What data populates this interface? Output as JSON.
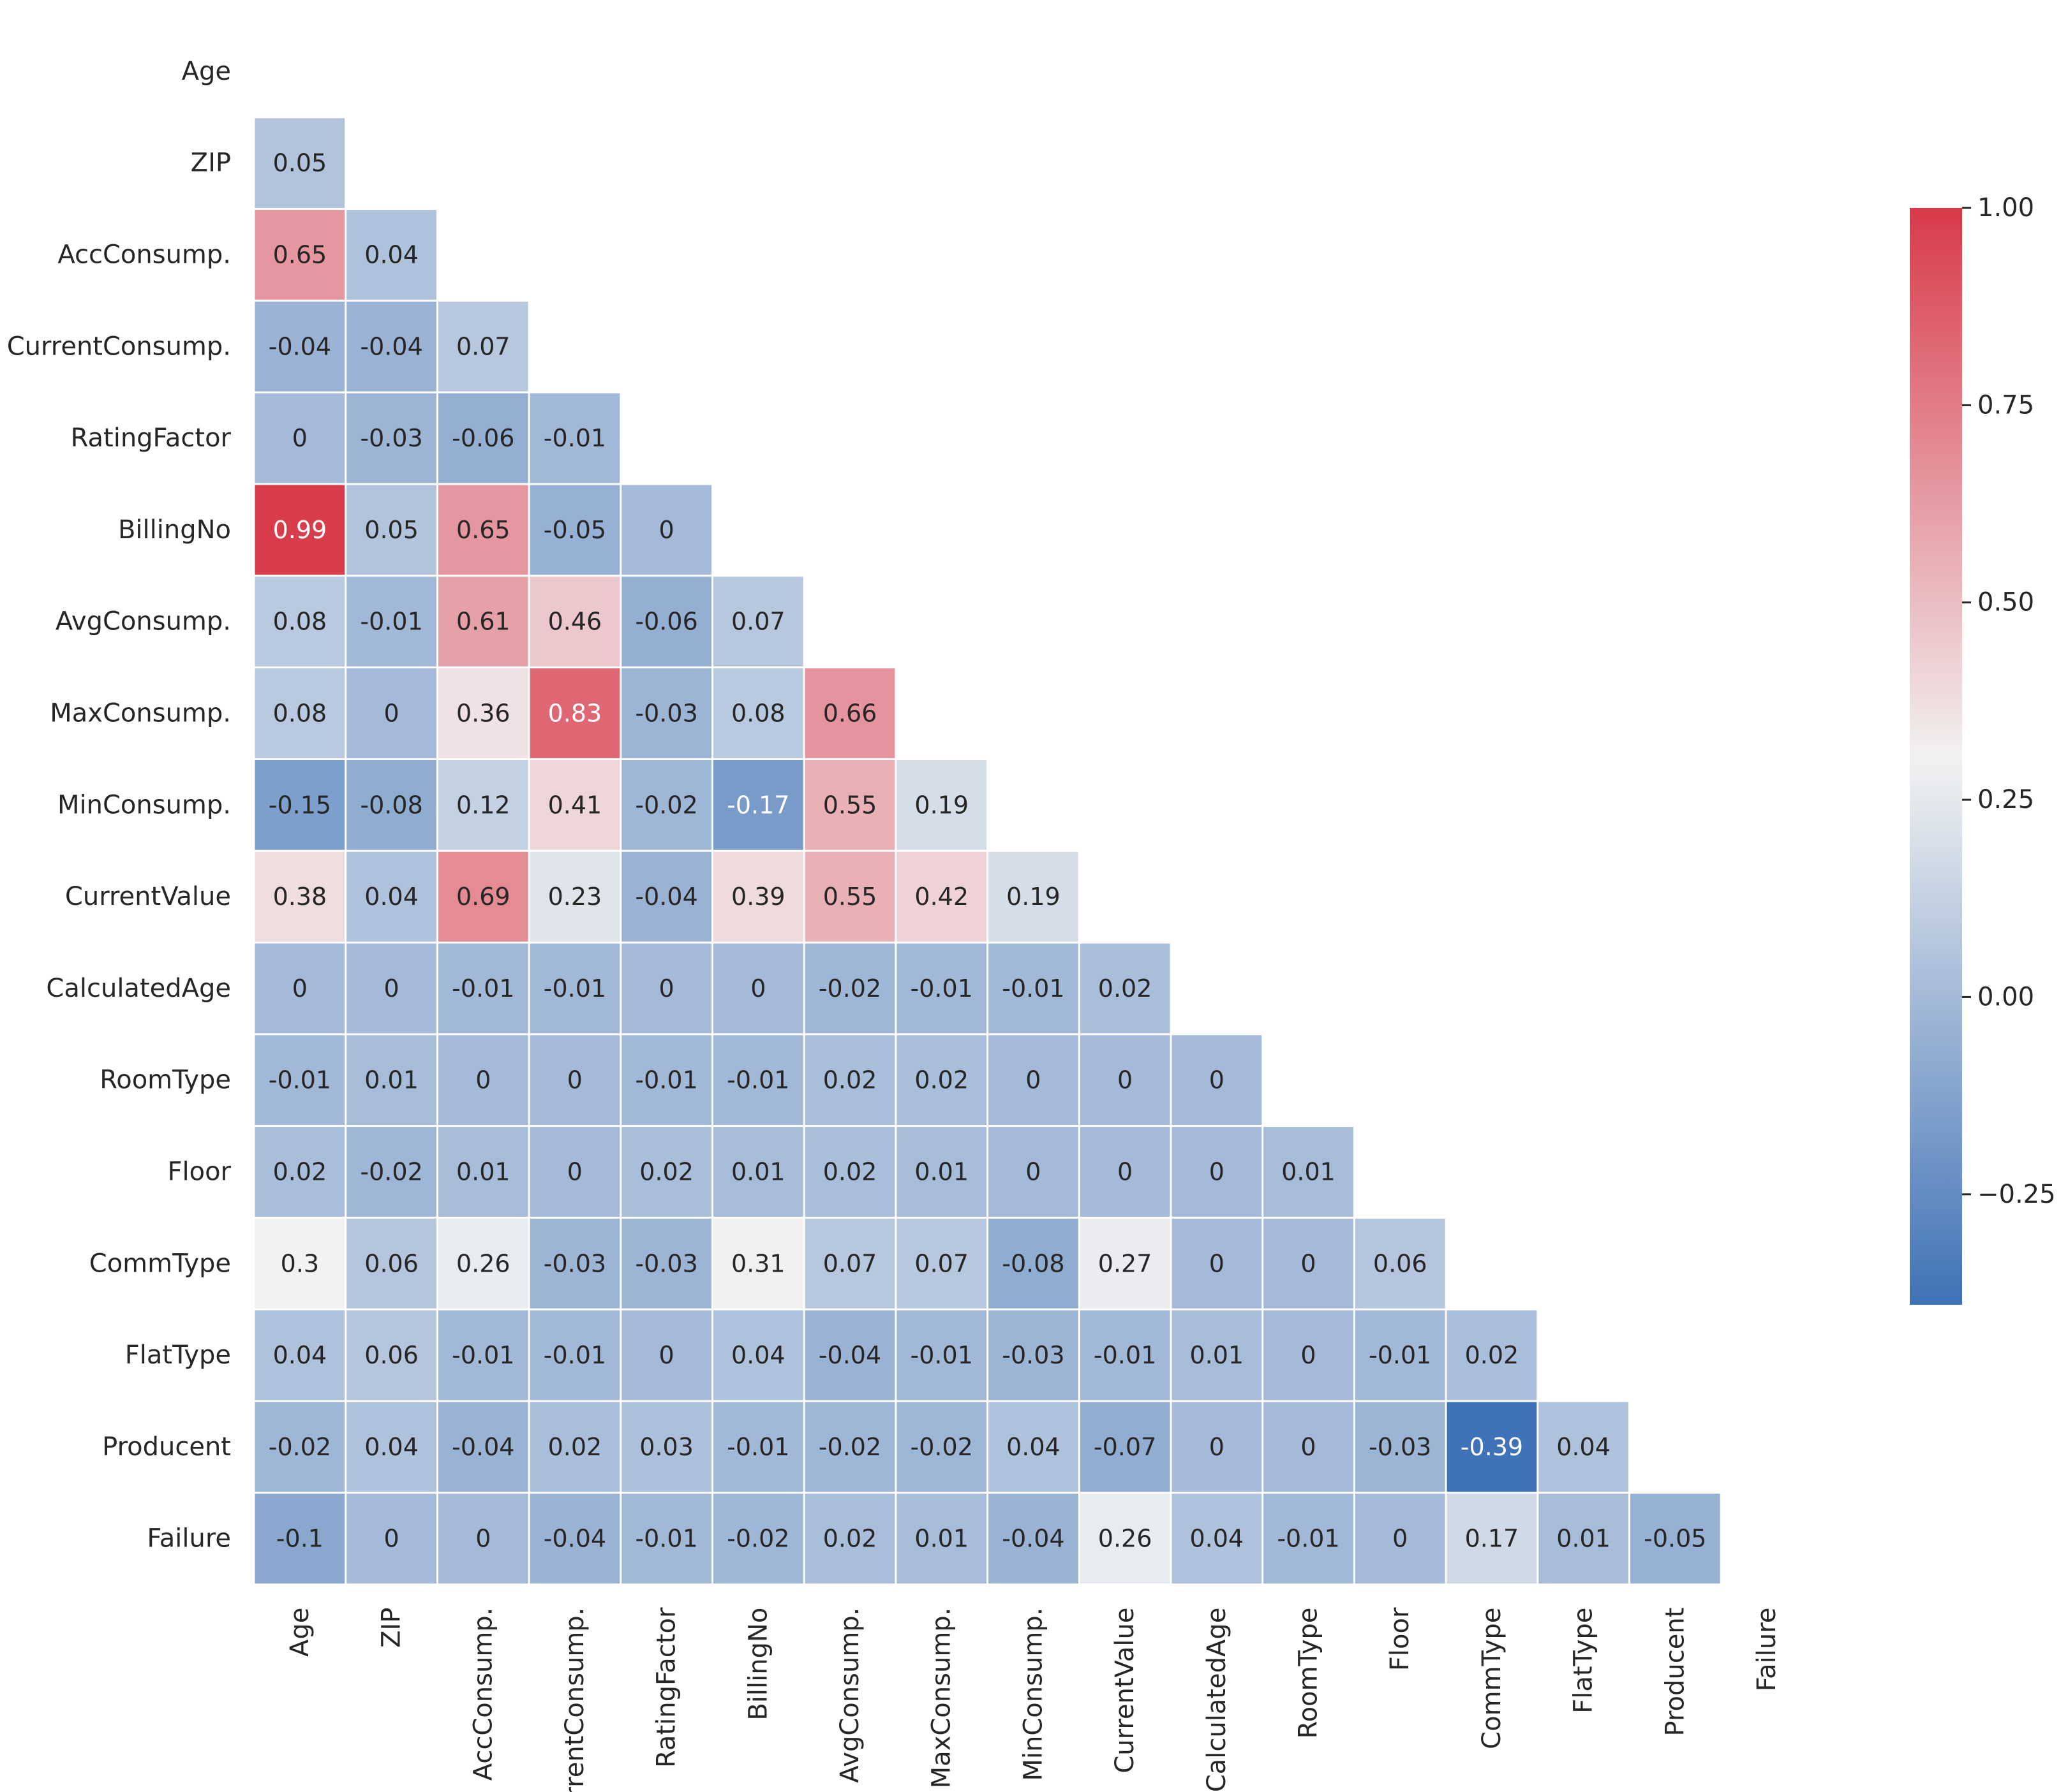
{
  "chart_data": {
    "type": "heatmap",
    "title": "",
    "xlabel": "",
    "ylabel": "",
    "mask": "upper-triangle-including-diagonal",
    "labels": [
      "Age",
      "ZIP",
      "AccConsump.",
      "CurrentConsump.",
      "RatingFactor",
      "BillingNo",
      "AvgConsump.",
      "MaxConsump.",
      "MinConsump.",
      "CurrentValue",
      "CalculatedAge",
      "RoomType",
      "Floor",
      "CommType",
      "FlatType",
      "Producent",
      "Failure"
    ],
    "matrix": [
      [],
      [
        "0.05"
      ],
      [
        "0.65",
        "0.04"
      ],
      [
        "-0.04",
        "-0.04",
        "0.07"
      ],
      [
        "0",
        "-0.03",
        "-0.06",
        "-0.01"
      ],
      [
        "0.99",
        "0.05",
        "0.65",
        "-0.05",
        "0"
      ],
      [
        "0.08",
        "-0.01",
        "0.61",
        "0.46",
        "-0.06",
        "0.07"
      ],
      [
        "0.08",
        "0",
        "0.36",
        "0.83",
        "-0.03",
        "0.08",
        "0.66"
      ],
      [
        "-0.15",
        "-0.08",
        "0.12",
        "0.41",
        "-0.02",
        "-0.17",
        "0.55",
        "0.19"
      ],
      [
        "0.38",
        "0.04",
        "0.69",
        "0.23",
        "-0.04",
        "0.39",
        "0.55",
        "0.42",
        "0.19"
      ],
      [
        "0",
        "0",
        "-0.01",
        "-0.01",
        "0",
        "0",
        "-0.02",
        "-0.01",
        "-0.01",
        "0.02"
      ],
      [
        "-0.01",
        "0.01",
        "0",
        "0",
        "-0.01",
        "-0.01",
        "0.02",
        "0.02",
        "0",
        "0",
        "0"
      ],
      [
        "0.02",
        "-0.02",
        "0.01",
        "0",
        "0.02",
        "0.01",
        "0.02",
        "0.01",
        "0",
        "0",
        "0",
        "0.01"
      ],
      [
        "0.3",
        "0.06",
        "0.26",
        "-0.03",
        "-0.03",
        "0.31",
        "0.07",
        "0.07",
        "-0.08",
        "0.27",
        "0",
        "0",
        "0.06"
      ],
      [
        "0.04",
        "0.06",
        "-0.01",
        "-0.01",
        "0",
        "0.04",
        "-0.04",
        "-0.01",
        "-0.03",
        "-0.01",
        "0.01",
        "0",
        "-0.01",
        "0.02"
      ],
      [
        "-0.02",
        "0.04",
        "-0.04",
        "0.02",
        "0.03",
        "-0.01",
        "-0.02",
        "-0.02",
        "0.04",
        "-0.07",
        "0",
        "0",
        "-0.03",
        "-0.39",
        "0.04"
      ],
      [
        "-0.1",
        "0",
        "0",
        "-0.04",
        "-0.01",
        "-0.02",
        "0.02",
        "0.01",
        "-0.04",
        "0.26",
        "0.04",
        "-0.01",
        "0",
        "0.17",
        "0.01",
        "-0.05"
      ]
    ],
    "colorbar": {
      "vmin": -0.39,
      "vmax": 1.0,
      "center": 0.3,
      "ticks": [
        1.0,
        0.75,
        0.5,
        0.25,
        0.0,
        -0.25
      ],
      "tick_labels": [
        "1.00",
        "0.75",
        "0.50",
        "0.25",
        "0.00",
        "−0.25"
      ]
    },
    "colors": {
      "low": "#3f72b6",
      "mid": "#f2f2f2",
      "high": "#d83a4a",
      "text_dark": "#262626",
      "text_light": "#ffffff"
    }
  }
}
